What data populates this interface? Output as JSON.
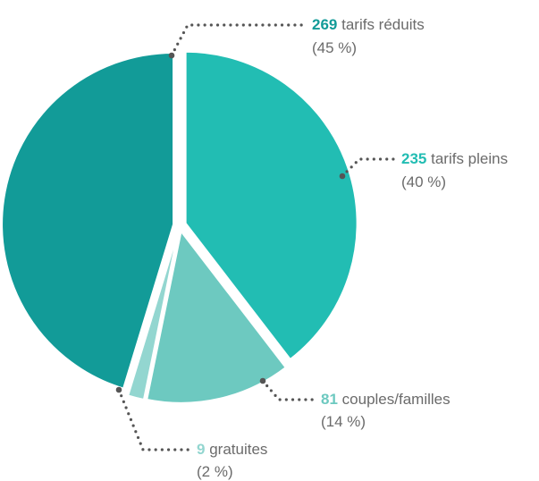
{
  "chart_data": {
    "type": "pie",
    "slices": [
      {
        "value": 269,
        "label": "tarifs réduits",
        "percent": "(45 %)",
        "color": "#129b98"
      },
      {
        "value": 235,
        "label": "tarifs pleins",
        "percent": "(40 %)",
        "color": "#22bdb3"
      },
      {
        "value": 81,
        "label": "couples/familles",
        "percent": "(14 %)",
        "color": "#6dc9c0"
      },
      {
        "value": 9,
        "label": "gratuites",
        "percent": "(2 %)",
        "color": "#93d6d0"
      }
    ],
    "legend": "none"
  }
}
